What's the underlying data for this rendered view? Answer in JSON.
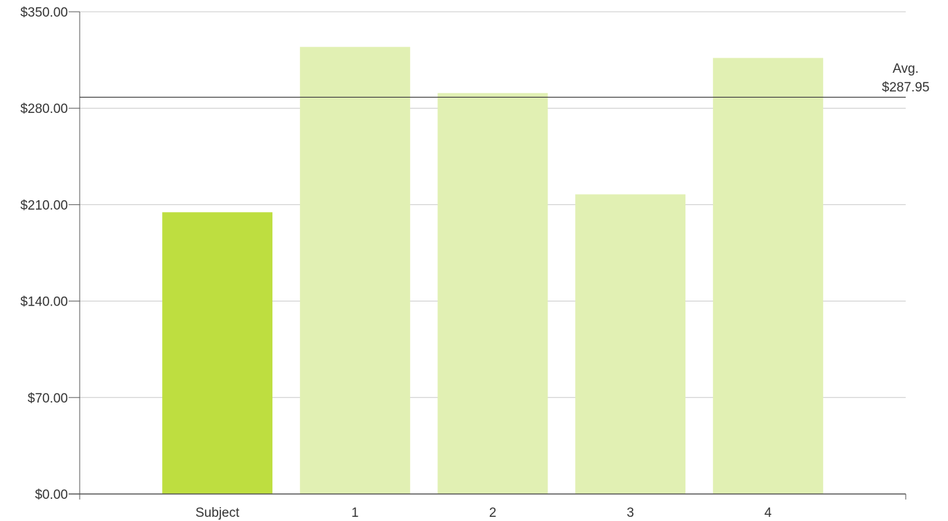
{
  "chart_data": {
    "type": "bar",
    "categories": [
      "Subject",
      "1",
      "2",
      "3",
      "4"
    ],
    "values": [
      204.5,
      324.5,
      291.0,
      217.5,
      316.5
    ],
    "ylim": [
      0,
      350
    ],
    "y_ticks": [
      0,
      70,
      140,
      210,
      280,
      350
    ],
    "y_tick_labels": [
      "$0.00",
      "$70.00",
      "$140.00",
      "$210.00",
      "$280.00",
      "$350.00"
    ],
    "grid": true,
    "reference_line": {
      "value": 287.95,
      "label_line1": "Avg.",
      "label_line2": "$287.95"
    },
    "colors": {
      "subject_bar": "#bede40",
      "comparable_bar": "#e1f0b3",
      "gridline": "#c8c8c8",
      "axis": "#555555",
      "avg_line": "#444444"
    }
  }
}
